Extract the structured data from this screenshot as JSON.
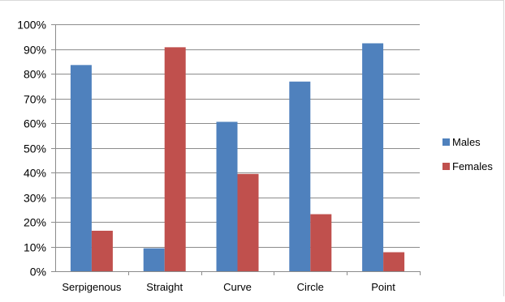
{
  "chart_data": {
    "type": "bar",
    "title": "",
    "xlabel": "",
    "ylabel": "",
    "categories": [
      "Serpigenous",
      "Straight",
      "Curve",
      "Circle",
      "Point"
    ],
    "series": [
      {
        "name": "Males",
        "values": [
          83.5,
          9.3,
          60.5,
          76.8,
          92.3
        ],
        "color": "#4f81bd"
      },
      {
        "name": "Females",
        "values": [
          16.4,
          90.7,
          39.4,
          23.1,
          7.7
        ],
        "color": "#c0504d"
      }
    ],
    "ylim": [
      0,
      100
    ],
    "yticks": [
      "0%",
      "10%",
      "20%",
      "30%",
      "40%",
      "50%",
      "60%",
      "70%",
      "80%",
      "90%",
      "100%"
    ],
    "grid": true,
    "legend_position": "right"
  }
}
